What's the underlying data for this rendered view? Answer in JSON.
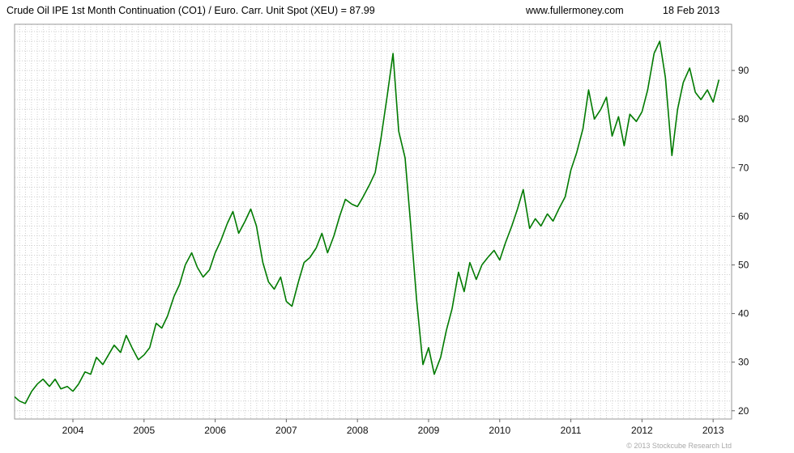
{
  "header": {
    "title": "Crude Oil IPE 1st Month Continuation (CO1) / Euro. Carr. Unit Spot (XEU) = 87.99",
    "site": "www.fullermoney.com",
    "date": "18 Feb 2013"
  },
  "footer": {
    "copyright": "© 2013 Stockcube Research Ltd"
  },
  "chart_data": {
    "type": "line",
    "title": "Crude Oil IPE 1st Month Continuation (CO1) / Euro. Carr. Unit Spot (XEU)",
    "last_value": 87.99,
    "line_color": "#007a00",
    "grid": true,
    "grid_color": "#cfcfcf",
    "frame_color": "#9a9a9a",
    "tick_color": "#666666",
    "label_color": "#111111",
    "legend_position": "none",
    "y_axis": {
      "side": "right",
      "ticks": [
        20,
        30,
        40,
        50,
        60,
        70,
        80,
        90
      ],
      "lim": [
        18.3,
        99.5
      ],
      "minor_step": 2
    },
    "x_axis": {
      "ticks": [
        2004,
        2005,
        2006,
        2007,
        2008,
        2009,
        2010,
        2011,
        2012,
        2013
      ],
      "lim": [
        2003.18,
        2013.26
      ],
      "minor_step_months": 1
    },
    "series": [
      {
        "name": "CO1/XEU",
        "x": [
          2003.17,
          2003.25,
          2003.33,
          2003.42,
          2003.5,
          2003.58,
          2003.67,
          2003.75,
          2003.83,
          2003.92,
          2004.0,
          2004.08,
          2004.17,
          2004.25,
          2004.33,
          2004.42,
          2004.5,
          2004.58,
          2004.67,
          2004.75,
          2004.83,
          2004.92,
          2005.0,
          2005.08,
          2005.17,
          2005.25,
          2005.33,
          2005.42,
          2005.5,
          2005.58,
          2005.67,
          2005.75,
          2005.83,
          2005.92,
          2006.0,
          2006.08,
          2006.17,
          2006.25,
          2006.33,
          2006.42,
          2006.5,
          2006.58,
          2006.67,
          2006.75,
          2006.83,
          2006.92,
          2007.0,
          2007.08,
          2007.17,
          2007.25,
          2007.33,
          2007.42,
          2007.5,
          2007.58,
          2007.67,
          2007.75,
          2007.83,
          2007.92,
          2008.0,
          2008.08,
          2008.17,
          2008.25,
          2008.33,
          2008.42,
          2008.5,
          2008.58,
          2008.67,
          2008.75,
          2008.83,
          2008.92,
          2009.0,
          2009.08,
          2009.17,
          2009.25,
          2009.33,
          2009.42,
          2009.5,
          2009.58,
          2009.67,
          2009.75,
          2009.83,
          2009.92,
          2010.0,
          2010.08,
          2010.17,
          2010.25,
          2010.33,
          2010.42,
          2010.5,
          2010.58,
          2010.67,
          2010.75,
          2010.83,
          2010.92,
          2011.0,
          2011.08,
          2011.17,
          2011.25,
          2011.33,
          2011.42,
          2011.5,
          2011.58,
          2011.67,
          2011.75,
          2011.83,
          2011.92,
          2012.0,
          2012.08,
          2012.17,
          2012.25,
          2012.33,
          2012.42,
          2012.5,
          2012.58,
          2012.67,
          2012.75,
          2012.83,
          2012.92,
          2013.0,
          2013.08
        ],
        "values": [
          23.0,
          22.0,
          21.5,
          24.0,
          25.5,
          26.5,
          25.0,
          26.5,
          24.5,
          25.0,
          24.0,
          25.5,
          28.0,
          27.5,
          31.0,
          29.5,
          31.5,
          33.5,
          32.0,
          35.5,
          33.0,
          30.5,
          31.5,
          33.0,
          38.0,
          37.0,
          39.5,
          43.5,
          46.0,
          50.0,
          52.5,
          49.5,
          47.5,
          49.0,
          52.5,
          55.0,
          58.5,
          61.0,
          56.5,
          59.0,
          61.5,
          58.0,
          50.5,
          46.5,
          45.0,
          47.5,
          42.5,
          41.5,
          46.5,
          50.5,
          51.5,
          53.5,
          56.5,
          52.5,
          56.0,
          60.0,
          63.5,
          62.5,
          62.0,
          64.0,
          66.5,
          69.0,
          76.0,
          85.0,
          93.5,
          77.5,
          72.0,
          58.0,
          43.0,
          29.5,
          33.0,
          27.5,
          31.0,
          36.5,
          41.0,
          48.5,
          44.5,
          50.5,
          47.0,
          50.0,
          51.5,
          53.0,
          51.0,
          54.5,
          58.0,
          61.5,
          65.5,
          57.5,
          59.5,
          58.0,
          60.5,
          59.0,
          61.5,
          64.0,
          69.5,
          73.0,
          78.0,
          86.0,
          80.0,
          82.0,
          84.5,
          76.5,
          80.5,
          74.5,
          81.0,
          79.5,
          81.5,
          86.0,
          93.5,
          96.0,
          88.5,
          72.5,
          82.0,
          87.5,
          90.5,
          85.5,
          84.0,
          86.0,
          83.5,
          88.0
        ]
      }
    ]
  }
}
